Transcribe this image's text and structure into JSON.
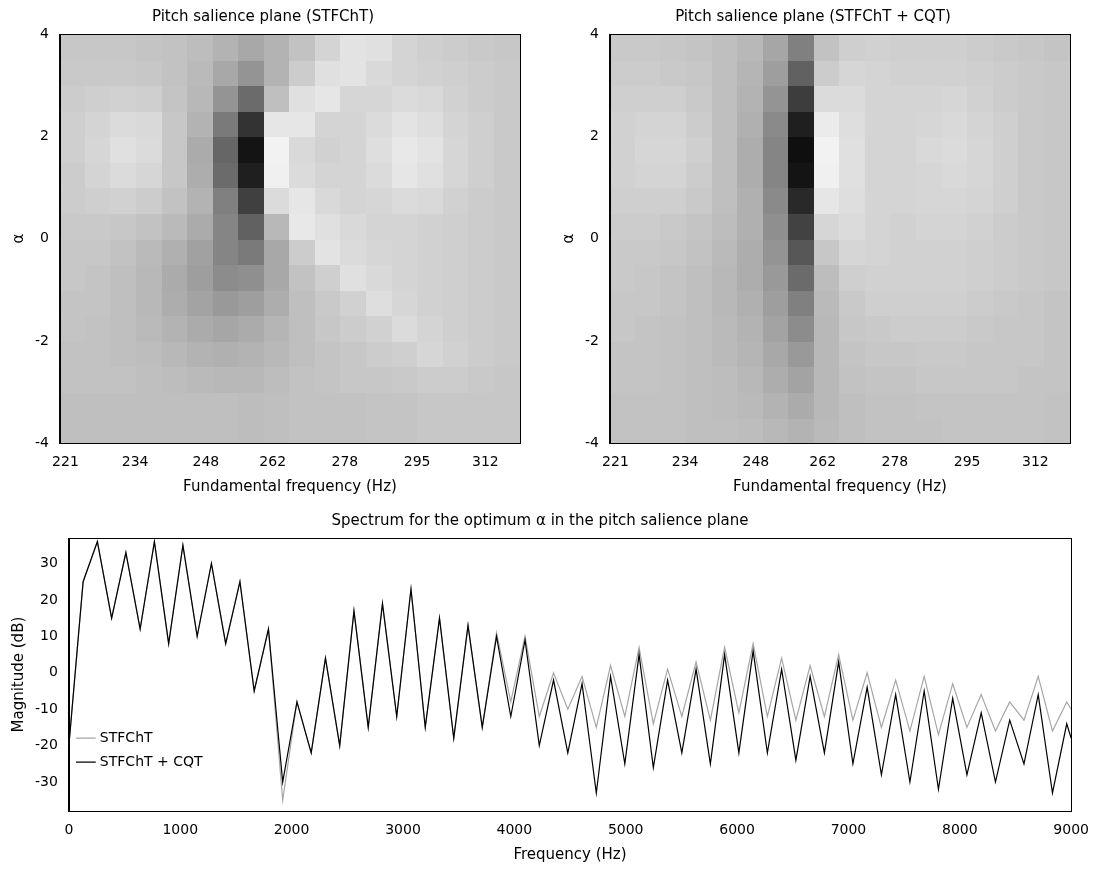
{
  "chart_data": [
    {
      "type": "heatmap",
      "title": "Pitch salience plane (STFChT)",
      "x_label": "Fundamental frequency (Hz)",
      "y_label": "α",
      "log": "x",
      "grid": false,
      "color": "#000000",
      "xlim": [
        220,
        321
      ],
      "xticks": [
        221,
        234,
        248,
        262,
        278,
        295,
        312
      ],
      "ylim": [
        -4,
        4
      ],
      "yticks": [
        -4,
        -2,
        0,
        2,
        4
      ],
      "cells": {
        "x_edges": [
          220,
          224.7,
          229.4,
          234.3,
          239.3,
          244.3,
          249.5,
          254.8,
          260.2,
          265.7,
          271.3,
          277.1,
          283.0,
          289.0,
          295.1,
          301.4,
          307.7,
          314.3,
          321
        ],
        "y_edges": [
          -4,
          -3.5,
          -3,
          -2.5,
          -2,
          -1.5,
          -1,
          -0.5,
          0,
          0.5,
          1,
          1.5,
          2,
          2.5,
          3,
          3.5,
          4
        ],
        "zlim": [
          0,
          100
        ],
        "values": [
          [
            25,
            25,
            25,
            25,
            25,
            25,
            25,
            26,
            25,
            24,
            24,
            24,
            23,
            23,
            22,
            22,
            22,
            22
          ],
          [
            25,
            25,
            25,
            25,
            25,
            25,
            25,
            26,
            25,
            24,
            24,
            24,
            23,
            23,
            22,
            22,
            22,
            22
          ],
          [
            24,
            24,
            24,
            25,
            26,
            27,
            28,
            28,
            26,
            24,
            23,
            22,
            22,
            21,
            20,
            20,
            21,
            22
          ],
          [
            24,
            24,
            25,
            26,
            28,
            30,
            31,
            30,
            28,
            25,
            23,
            22,
            20,
            19,
            16,
            18,
            20,
            21
          ],
          [
            23,
            24,
            25,
            27,
            30,
            33,
            35,
            33,
            29,
            25,
            22,
            20,
            18,
            14,
            17,
            19,
            20,
            21
          ],
          [
            23,
            23,
            25,
            28,
            32,
            36,
            40,
            38,
            32,
            25,
            21,
            18,
            13,
            16,
            18,
            19,
            20,
            21
          ],
          [
            22,
            23,
            25,
            28,
            33,
            38,
            45,
            44,
            34,
            24,
            19,
            12,
            15,
            17,
            18,
            19,
            20,
            21
          ],
          [
            22,
            22,
            24,
            27,
            31,
            37,
            48,
            52,
            34,
            20,
            11,
            14,
            16,
            17,
            18,
            19,
            20,
            21
          ],
          [
            21,
            21,
            22,
            24,
            27,
            33,
            48,
            62,
            28,
            9,
            12,
            15,
            17,
            17,
            18,
            19,
            20,
            21
          ],
          [
            20,
            19,
            18,
            20,
            24,
            30,
            50,
            75,
            14,
            10,
            15,
            17,
            16,
            14,
            15,
            18,
            20,
            21
          ],
          [
            20,
            17,
            14,
            16,
            22,
            32,
            58,
            88,
            6,
            14,
            17,
            17,
            14,
            10,
            12,
            16,
            19,
            21
          ],
          [
            19,
            16,
            12,
            14,
            22,
            33,
            60,
            92,
            5,
            15,
            18,
            17,
            13,
            9,
            11,
            16,
            19,
            21
          ],
          [
            19,
            17,
            14,
            15,
            22,
            30,
            52,
            80,
            10,
            10,
            17,
            17,
            14,
            11,
            13,
            17,
            19,
            21
          ],
          [
            20,
            19,
            18,
            19,
            23,
            28,
            42,
            58,
            25,
            12,
            10,
            16,
            16,
            14,
            15,
            18,
            20,
            21
          ],
          [
            21,
            21,
            21,
            22,
            24,
            27,
            34,
            42,
            30,
            20,
            12,
            11,
            15,
            17,
            18,
            19,
            20,
            21
          ],
          [
            22,
            22,
            22,
            23,
            24,
            26,
            30,
            34,
            30,
            24,
            17,
            11,
            12,
            17,
            19,
            20,
            21,
            22
          ]
        ]
      }
    },
    {
      "type": "heatmap",
      "title": "Pitch salience plane (STFChT + CQT)",
      "x_label": "Fundamental frequency (Hz)",
      "y_label": "α",
      "log": "x",
      "grid": false,
      "color": "#000000",
      "xlim": [
        220,
        321
      ],
      "xticks": [
        221,
        234,
        248,
        262,
        278,
        295,
        312
      ],
      "ylim": [
        -4,
        4
      ],
      "yticks": [
        -4,
        -2,
        0,
        2,
        4
      ],
      "cells": {
        "x_edges": [
          220,
          224.7,
          229.4,
          234.3,
          239.3,
          244.3,
          249.5,
          254.8,
          260.2,
          265.7,
          271.3,
          277.1,
          283.0,
          289.0,
          295.1,
          301.4,
          307.7,
          314.3,
          321
        ],
        "y_edges": [
          -4,
          -3.5,
          -3,
          -2.5,
          -2,
          -1.5,
          -1,
          -0.5,
          0,
          0.5,
          1,
          1.5,
          2,
          2.5,
          3,
          3.5,
          4
        ],
        "zlim": [
          0,
          100
        ],
        "values": [
          [
            24,
            24,
            24,
            25,
            25,
            26,
            28,
            30,
            27,
            25,
            24,
            24,
            24,
            23,
            23,
            23,
            23,
            24
          ],
          [
            24,
            24,
            24,
            25,
            26,
            27,
            30,
            33,
            28,
            25,
            24,
            24,
            23,
            23,
            23,
            23,
            23,
            24
          ],
          [
            23,
            23,
            24,
            25,
            26,
            28,
            32,
            36,
            28,
            24,
            23,
            23,
            22,
            22,
            22,
            22,
            23,
            23
          ],
          [
            23,
            23,
            24,
            25,
            27,
            29,
            34,
            40,
            28,
            23,
            22,
            22,
            21,
            21,
            22,
            22,
            22,
            23
          ],
          [
            22,
            23,
            24,
            25,
            27,
            30,
            36,
            45,
            28,
            22,
            21,
            20,
            20,
            20,
            21,
            22,
            22,
            23
          ],
          [
            22,
            22,
            23,
            25,
            28,
            31,
            38,
            50,
            27,
            21,
            19,
            19,
            19,
            19,
            20,
            21,
            22,
            23
          ],
          [
            21,
            22,
            23,
            25,
            28,
            32,
            40,
            58,
            26,
            19,
            18,
            18,
            18,
            18,
            19,
            20,
            21,
            22
          ],
          [
            21,
            21,
            22,
            24,
            27,
            32,
            42,
            66,
            22,
            16,
            17,
            18,
            18,
            18,
            19,
            20,
            21,
            22
          ],
          [
            20,
            20,
            21,
            23,
            26,
            31,
            44,
            74,
            16,
            14,
            17,
            18,
            17,
            17,
            18,
            20,
            21,
            22
          ],
          [
            19,
            19,
            19,
            21,
            25,
            31,
            46,
            84,
            10,
            13,
            17,
            17,
            16,
            16,
            17,
            19,
            21,
            22
          ],
          [
            18,
            17,
            17,
            20,
            25,
            32,
            48,
            92,
            6,
            12,
            17,
            17,
            16,
            15,
            16,
            19,
            21,
            22
          ],
          [
            18,
            16,
            16,
            19,
            25,
            32,
            48,
            94,
            5,
            12,
            17,
            17,
            15,
            14,
            16,
            19,
            21,
            22
          ],
          [
            18,
            17,
            17,
            20,
            25,
            31,
            46,
            88,
            8,
            13,
            17,
            17,
            16,
            15,
            17,
            19,
            21,
            22
          ],
          [
            19,
            19,
            19,
            21,
            25,
            30,
            42,
            76,
            14,
            14,
            17,
            17,
            17,
            16,
            18,
            20,
            21,
            22
          ],
          [
            20,
            20,
            21,
            22,
            25,
            29,
            38,
            62,
            20,
            16,
            17,
            18,
            18,
            18,
            19,
            20,
            21,
            22
          ],
          [
            21,
            21,
            22,
            23,
            25,
            28,
            35,
            50,
            24,
            19,
            18,
            19,
            19,
            19,
            20,
            21,
            22,
            23
          ]
        ]
      }
    },
    {
      "type": "line",
      "title": "Spectrum for the optimum α in the pitch salience plane",
      "x_label": "Frequency (Hz)",
      "y_label": "Magnitude (dB)",
      "grid": false,
      "legend": "upper right",
      "xlim": [
        0,
        9000
      ],
      "xticks": [
        0,
        1000,
        2000,
        3000,
        4000,
        5000,
        6000,
        7000,
        8000,
        9000
      ],
      "ylim": [
        -38,
        37
      ],
      "yticks": [
        -30,
        -20,
        -10,
        0,
        10,
        20,
        30
      ],
      "x": [
        0,
        128,
        256,
        384,
        512,
        640,
        768,
        896,
        1024,
        1152,
        1280,
        1408,
        1536,
        1664,
        1792,
        1920,
        2048,
        2176,
        2304,
        2432,
        2560,
        2688,
        2816,
        2944,
        3072,
        3200,
        3328,
        3456,
        3584,
        3712,
        3840,
        3968,
        4096,
        4224,
        4352,
        4480,
        4608,
        4736,
        4864,
        4992,
        5120,
        5248,
        5376,
        5504,
        5632,
        5760,
        5888,
        6016,
        6144,
        6272,
        6400,
        6528,
        6656,
        6784,
        6912,
        7040,
        7168,
        7296,
        7424,
        7552,
        7680,
        7808,
        7936,
        8064,
        8192,
        8320,
        8448,
        8576,
        8704,
        8832,
        8960,
        9000
      ],
      "series": [
        {
          "name": "STFChT",
          "color": "#a6a6a6",
          "line_style": "solid",
          "values": [
            -20,
            25,
            36,
            15,
            33,
            12,
            36,
            8,
            35,
            10,
            30,
            8,
            25,
            -5,
            12,
            -35,
            -8,
            -22,
            4,
            -20,
            17,
            -15,
            19,
            -12,
            23,
            -15,
            15,
            -18,
            13,
            -15,
            11,
            -8,
            10,
            -12,
            0,
            -10,
            -1,
            -15,
            2,
            -12,
            7,
            -14,
            1,
            -12,
            3,
            -13,
            7,
            -11,
            8,
            -12,
            4,
            -13,
            2,
            -12,
            5,
            -13,
            0,
            -15,
            -2,
            -16,
            -1,
            -17,
            -3,
            -15,
            -6,
            -16,
            -8,
            -13,
            -1,
            -16,
            -8,
            -10
          ]
        },
        {
          "name": "STFChT + CQT",
          "color": "#000000",
          "line_style": "solid",
          "values": [
            -20,
            25,
            36,
            15,
            33,
            12,
            36,
            8,
            35,
            10,
            30,
            8,
            25,
            -5,
            12,
            -30,
            -8,
            -22,
            4,
            -20,
            17,
            -15,
            19,
            -12,
            23,
            -15,
            15,
            -18,
            13,
            -15,
            10,
            -12,
            9,
            -20,
            -2,
            -22,
            -3,
            -33,
            -1,
            -25,
            5,
            -26,
            -2,
            -22,
            1,
            -25,
            5,
            -22,
            6,
            -22,
            1,
            -24,
            -1,
            -22,
            3,
            -25,
            -4,
            -28,
            -6,
            -30,
            -5,
            -32,
            -7,
            -28,
            -11,
            -30,
            -13,
            -25,
            -6,
            -33,
            -14,
            -18
          ]
        }
      ]
    }
  ]
}
